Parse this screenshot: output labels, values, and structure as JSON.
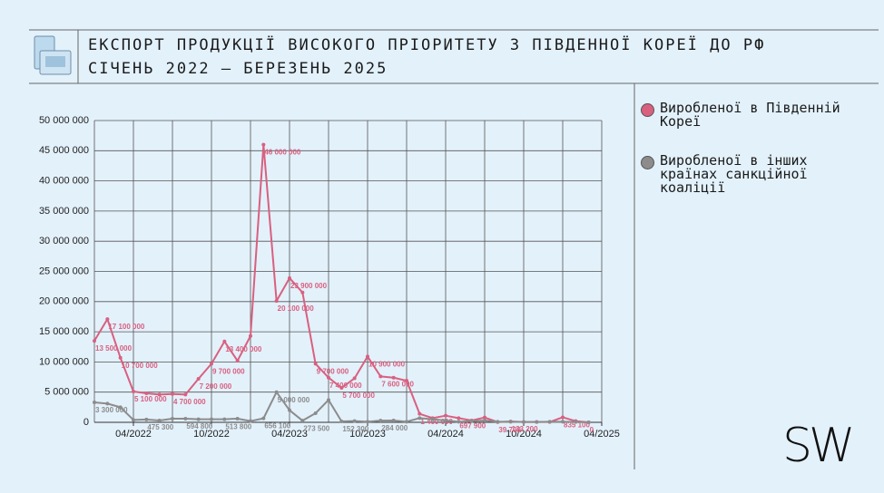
{
  "chart_data": {
    "type": "line",
    "title": "ЕКСПОРТ ПРОДУКЦІЇ ВИСОКОГО ПРІОРИТЕТУ З ПІВДЕННОЇ КОРЕЇ ДО РФ",
    "subtitle": "СІЧЕНЬ 2022 – БЕРЕЗЕНЬ 2025",
    "categories": [
      null,
      null,
      null,
      "04/2022",
      null,
      null,
      null,
      null,
      null,
      "10/2022",
      null,
      null,
      null,
      null,
      null,
      "04/2023",
      null,
      null,
      null,
      null,
      null,
      "10/2023",
      null,
      null,
      null,
      null,
      null,
      "04/2024",
      null,
      null,
      null,
      null,
      null,
      "10/2024",
      null,
      null,
      null,
      null,
      null,
      "04/2025"
    ],
    "series": [
      {
        "name": "Виробленої в Південній Кореї",
        "color": "#d9607f",
        "values": [
          13500000,
          17100000,
          10700000,
          5100000,
          4800000,
          4600000,
          4700000,
          4600000,
          7200000,
          9700000,
          13400000,
          10200000,
          14300000,
          46000000,
          20100000,
          23900000,
          21500000,
          9700000,
          7400000,
          5700000,
          7300000,
          10900000,
          7600000,
          7400000,
          6900000,
          1400000,
          700000,
          1100000,
          697900,
          300000,
          800000,
          39700,
          133200,
          50000,
          50000,
          50000,
          835100,
          200000,
          0,
          null
        ],
        "value_labels": [
          "13 500 000",
          "17 100 000",
          "10 700 000",
          "5 100 000",
          null,
          null,
          "4 700 000",
          null,
          "7 200 000",
          "9 700 000",
          "13 400 000",
          null,
          null,
          "46 000 000",
          "20 100 000",
          "23 900 000",
          null,
          "9 700 000",
          "7 400 000",
          "5 700 000",
          null,
          "10 900 000",
          "7 600 000",
          null,
          null,
          "1 400 000",
          null,
          null,
          "697 900",
          null,
          null,
          "39 700",
          "133 200",
          null,
          null,
          null,
          "835 100",
          null,
          "0",
          null
        ]
      },
      {
        "name": "Виробленої в інших країнах санкційної коаліції",
        "color": "#8c8c8c",
        "values": [
          3300000,
          3100000,
          2500000,
          400000,
          475300,
          300000,
          600000,
          594800,
          500000,
          500000,
          513800,
          600000,
          200000,
          656100,
          5000000,
          2000000,
          273500,
          1500000,
          3700000,
          152300,
          200000,
          100000,
          284000,
          300000,
          100000,
          700000,
          500000,
          300000,
          100000,
          200000,
          300000,
          100000,
          100000,
          50000,
          50000,
          100000,
          100000,
          50000,
          0,
          null
        ],
        "value_labels": [
          "3 300 000",
          null,
          null,
          null,
          "475 300",
          null,
          null,
          "594 800",
          null,
          null,
          "513 800",
          null,
          null,
          "656 100",
          "5 000 000",
          null,
          "273 500",
          null,
          null,
          "152 300",
          null,
          null,
          "284 000",
          null,
          null,
          null,
          null,
          null,
          null,
          null,
          null,
          null,
          null,
          null,
          null,
          null,
          null,
          null,
          null,
          null
        ]
      }
    ],
    "ylim": [
      0,
      50000000
    ],
    "yticks": [
      0,
      {
        "value": 5000000,
        "label": "5 000 000"
      },
      {
        "value": 10000000,
        "label": "10 000 000"
      },
      {
        "value": 15000000,
        "label": "15 000 000"
      },
      {
        "value": 20000000,
        "label": "20 000 000"
      },
      {
        "value": 25000000,
        "label": "25 000 000"
      },
      {
        "value": 30000000,
        "label": "30 000 000"
      },
      {
        "value": 35000000,
        "label": "35 000 000"
      },
      {
        "value": 40000000,
        "label": "40 000 000"
      },
      {
        "value": 45000000,
        "label": "45 000 000"
      },
      {
        "value": 50000000,
        "label": "50 000 000"
      }
    ],
    "grid": true,
    "legend": "right"
  },
  "logo": "SW"
}
